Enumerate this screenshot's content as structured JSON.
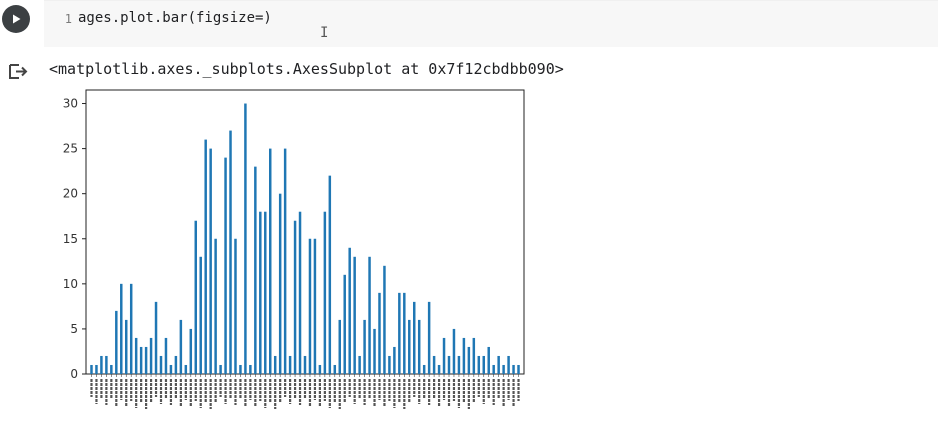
{
  "cell": {
    "line_number": "1",
    "code": "ages.plot.bar(figsize=)",
    "cursor_glyph": "I",
    "output_repr": "<matplotlib.axes._subplots.AxesSubplot at 0x7f12cbdbb090>"
  },
  "icons": {
    "run": "play-icon",
    "output": "output-arrow-icon"
  },
  "chart_data": {
    "type": "bar",
    "ylim": [
      0,
      31.5
    ],
    "yticks": [
      0,
      5,
      10,
      15,
      20,
      25,
      30
    ],
    "bar_color": "#1f77b4",
    "values": [
      1,
      1,
      2,
      2,
      1,
      7,
      10,
      6,
      10,
      4,
      3,
      3,
      4,
      8,
      2,
      4,
      1,
      2,
      6,
      1,
      5,
      17,
      13,
      26,
      25,
      15,
      1,
      24,
      27,
      15,
      1,
      30,
      1,
      23,
      18,
      18,
      25,
      2,
      20,
      25,
      2,
      17,
      18,
      2,
      15,
      15,
      1,
      18,
      22,
      1,
      6,
      11,
      14,
      13,
      2,
      6,
      13,
      5,
      9,
      12,
      2,
      3,
      9,
      9,
      6,
      8,
      6,
      1,
      8,
      2,
      1,
      4,
      2,
      5,
      2,
      4,
      3,
      4,
      2,
      2,
      3,
      1,
      2,
      1,
      2,
      1,
      1
    ],
    "grid": false
  }
}
